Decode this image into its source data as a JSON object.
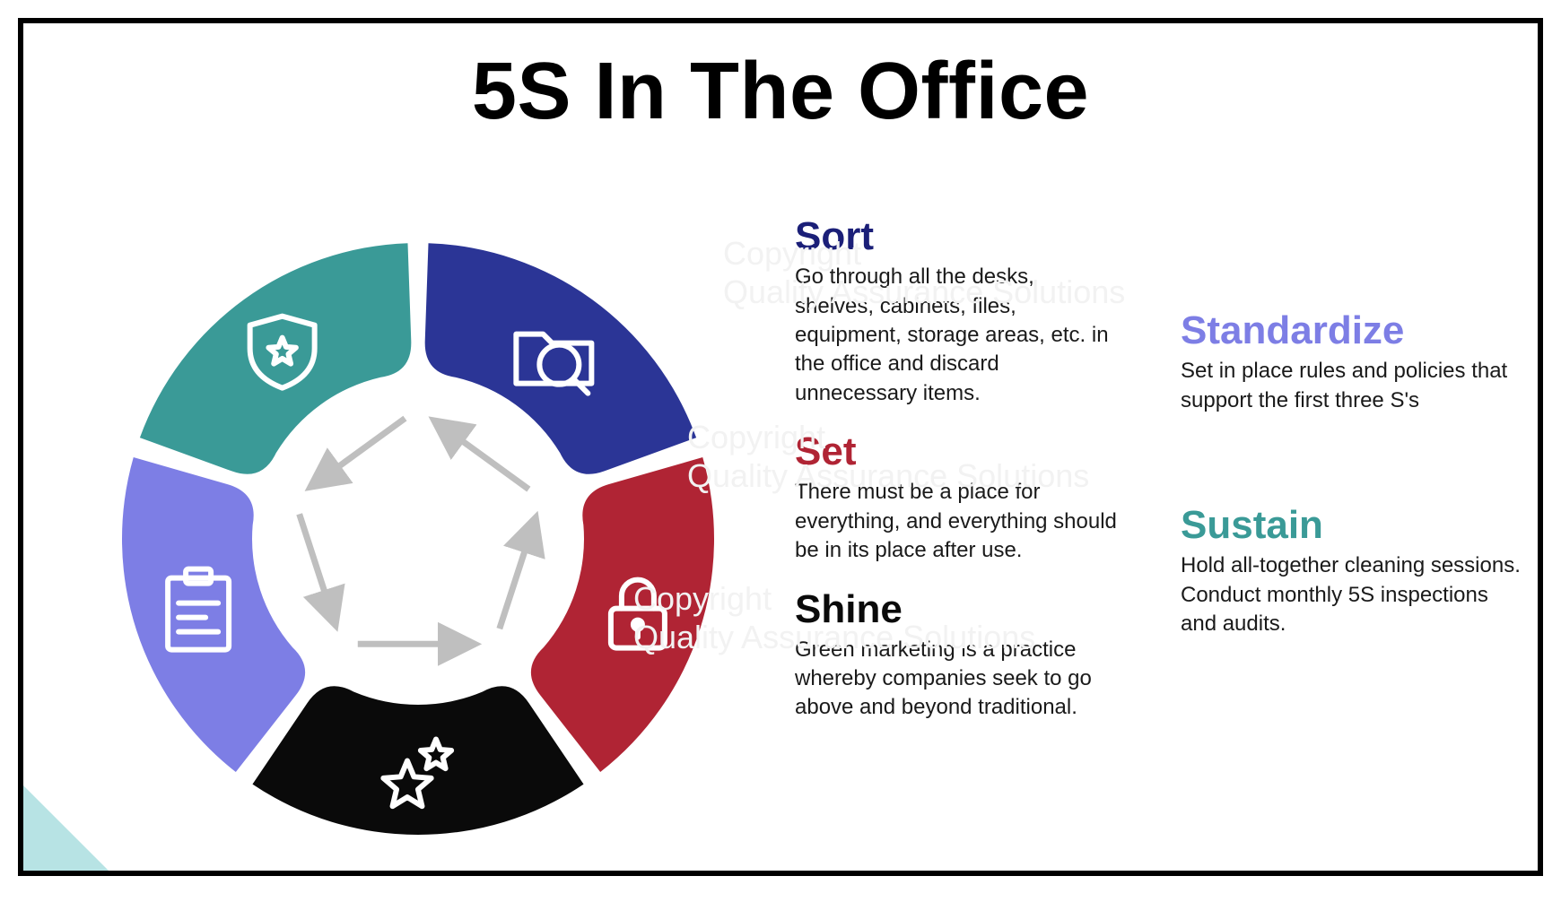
{
  "title": "5S In The Office",
  "watermark_line1": "Copyright",
  "watermark_line2": "Quality Assurance Solutions",
  "wheel": {
    "type": "segmented-ring",
    "outer_r": 330,
    "inner_r": 185,
    "gap_deg": 4,
    "inner_corner_radius": 36,
    "segments": [
      {
        "key": "sort",
        "color": "#2b3596",
        "icon": "folder-search",
        "start_deg": -90,
        "end_deg": -18
      },
      {
        "key": "set",
        "color": "#b02434",
        "icon": "lock",
        "start_deg": -18,
        "end_deg": 54
      },
      {
        "key": "shine",
        "color": "#0a0a0a",
        "icon": "stars",
        "start_deg": 54,
        "end_deg": 126
      },
      {
        "key": "standardize",
        "color": "#7d7ee5",
        "icon": "clipboard",
        "start_deg": 126,
        "end_deg": 198
      },
      {
        "key": "sustain",
        "color": "#3a9a97",
        "icon": "shield-star",
        "start_deg": 198,
        "end_deg": 270
      }
    ],
    "arrow_color": "#bfbfbf",
    "inner_arrow_r": 145
  },
  "items_left": [
    {
      "key": "sort",
      "title": "Sort",
      "title_color": "#1b1f78",
      "body": "Go through all the desks, shelves, cabinets, files, equipment, storage areas, etc. in the office and discard unnecessary items."
    },
    {
      "key": "set",
      "title": "Set",
      "title_color": "#b02434",
      "body": "There must be a place for everything, and everything should be in its place after use."
    },
    {
      "key": "shine",
      "title": "Shine",
      "title_color": "#0a0a0a",
      "body": "Green marketing is a practice whereby companies seek to go above and beyond traditional."
    }
  ],
  "items_right": [
    {
      "key": "standardize",
      "title": "Standardize",
      "title_color": "#7d7ee5",
      "body": "Set in place rules and policies that support the first three S's"
    },
    {
      "key": "sustain",
      "title": "Sustain",
      "title_color": "#3a9a97",
      "body": "Hold all-together cleaning sessions. Conduct monthly 5S inspections and audits."
    }
  ]
}
